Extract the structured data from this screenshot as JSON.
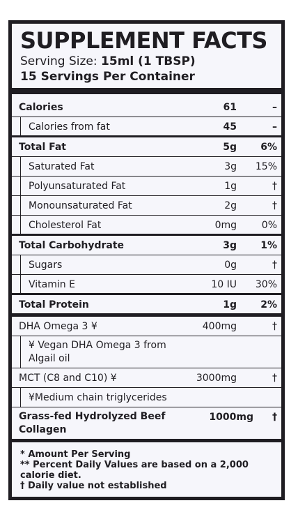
{
  "header": {
    "title": "SUPPLEMENT FACTS",
    "serving_label": "Serving Size: ",
    "serving_value": "15ml (1 TBSP)",
    "servings_per_container": "15 Servings Per Container"
  },
  "rows": [
    {
      "label": "Calories",
      "amount": "61",
      "dv": "–"
    },
    {
      "label": "Calories from fat",
      "amount": "45",
      "dv": "–"
    },
    {
      "label": "Total Fat",
      "amount": "5g",
      "dv": "6%"
    },
    {
      "label": "Saturated Fat",
      "amount": "3g",
      "dv": "15%"
    },
    {
      "label": "Polyunsaturated Fat",
      "amount": "1g",
      "dv": "†"
    },
    {
      "label": "Monounsaturated Fat",
      "amount": "2g",
      "dv": "†"
    },
    {
      "label": "Cholesterol Fat",
      "amount": "0mg",
      "dv": "0%"
    },
    {
      "label": "Total Carbohydrate",
      "amount": "3g",
      "dv": "1%"
    },
    {
      "label": "Sugars",
      "amount": "0g",
      "dv": "†"
    },
    {
      "label": "Vitamin E",
      "amount": "10 IU",
      "dv": "30%"
    },
    {
      "label": "Total Protein",
      "amount": "1g",
      "dv": "2%"
    },
    {
      "label": "DHA Omega 3 ¥",
      "amount": "400mg",
      "dv": "†"
    },
    {
      "label_line1": "¥ Vegan DHA Omega 3 from",
      "label_line2": "Algail oil"
    },
    {
      "label": "MCT (C8 and C10) ¥",
      "amount": "3000mg",
      "dv": "†"
    },
    {
      "label": "¥Medium chain triglycerides"
    },
    {
      "label_line1": "Grass-fed Hydrolyzed Beef",
      "label_line2": "Collagen",
      "amount": "1000mg",
      "dv": "†"
    }
  ],
  "footer": {
    "line1": "* Amount Per Serving",
    "line2": "** Percent Daily Values are based on a 2,000",
    "line3": "calorie diet.",
    "line4": "† Daily value not established"
  }
}
